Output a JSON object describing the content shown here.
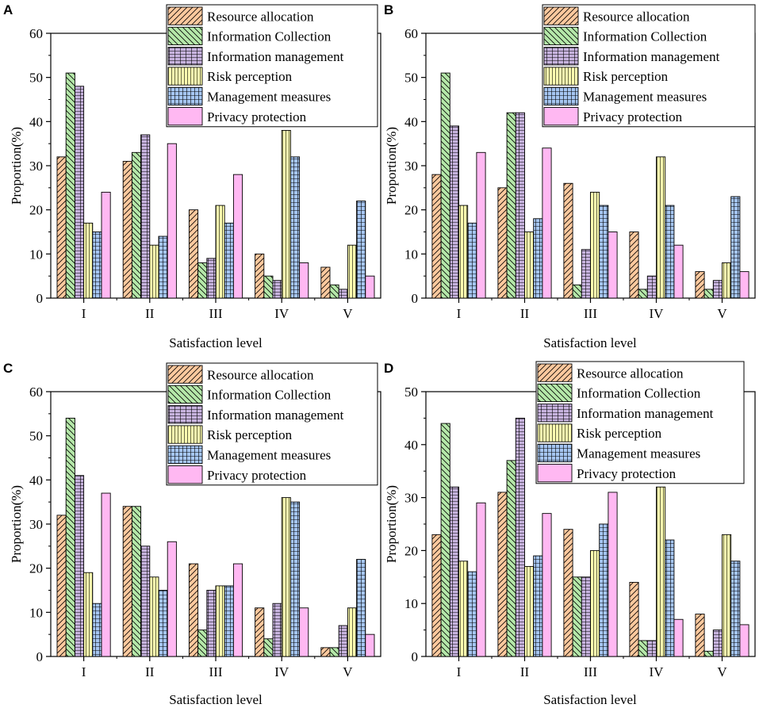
{
  "figure": {
    "series_names": [
      "Resource allocation",
      "Information Collection",
      "Information management",
      "Risk perception",
      "Management measures",
      "Privacy protection"
    ],
    "series_colors": [
      "#FFC99E",
      "#B5E8A9",
      "#C7B3DE",
      "#FFFFB0",
      "#A6C6F2",
      "#FFB8F2"
    ],
    "series_patterns": [
      "diag-right",
      "diag-left",
      "grid-h",
      "vertical",
      "grid",
      "solid"
    ]
  },
  "chart_data": [
    {
      "type": "bar",
      "panel_label": "A",
      "categories": [
        "I",
        "II",
        "III",
        "IV",
        "V"
      ],
      "series": [
        {
          "name": "Resource allocation",
          "values": [
            32,
            31,
            20,
            10,
            7
          ]
        },
        {
          "name": "Information Collection",
          "values": [
            51,
            33,
            8,
            5,
            3
          ]
        },
        {
          "name": "Information management",
          "values": [
            48,
            37,
            9,
            4,
            2
          ]
        },
        {
          "name": "Risk perception",
          "values": [
            17,
            12,
            21,
            38,
            12
          ]
        },
        {
          "name": "Management measures",
          "values": [
            15,
            14,
            17,
            32,
            22
          ]
        },
        {
          "name": "Privacy protection",
          "values": [
            24,
            35,
            28,
            8,
            5
          ]
        }
      ],
      "xlabel": "Satisfaction level",
      "ylabel": "Proportion(%)",
      "ylim": [
        0,
        60
      ],
      "yticks": [
        0,
        10,
        20,
        30,
        40,
        50,
        60
      ],
      "legend": "top-right"
    },
    {
      "type": "bar",
      "panel_label": "B",
      "categories": [
        "I",
        "II",
        "III",
        "IV",
        "V"
      ],
      "series": [
        {
          "name": "Resource allocation",
          "values": [
            28,
            25,
            26,
            15,
            6
          ]
        },
        {
          "name": "Information Collection",
          "values": [
            51,
            42,
            3,
            2,
            2
          ]
        },
        {
          "name": "Information management",
          "values": [
            39,
            42,
            11,
            5,
            4
          ]
        },
        {
          "name": "Risk perception",
          "values": [
            21,
            15,
            24,
            32,
            8
          ]
        },
        {
          "name": "Management measures",
          "values": [
            17,
            18,
            21,
            21,
            23
          ]
        },
        {
          "name": "Privacy protection",
          "values": [
            33,
            34,
            15,
            12,
            6
          ]
        }
      ],
      "xlabel": "Satisfaction level",
      "ylabel": "Proportion(%)",
      "ylim": [
        0,
        60
      ],
      "yticks": [
        0,
        10,
        20,
        30,
        40,
        50,
        60
      ],
      "legend": "top-right"
    },
    {
      "type": "bar",
      "panel_label": "C",
      "categories": [
        "I",
        "II",
        "III",
        "IV",
        "V"
      ],
      "series": [
        {
          "name": "Resource allocation",
          "values": [
            32,
            34,
            21,
            11,
            2
          ]
        },
        {
          "name": "Information Collection",
          "values": [
            54,
            34,
            6,
            4,
            2
          ]
        },
        {
          "name": "Information management",
          "values": [
            41,
            25,
            15,
            12,
            7
          ]
        },
        {
          "name": "Risk perception",
          "values": [
            19,
            18,
            16,
            36,
            11
          ]
        },
        {
          "name": "Management measures",
          "values": [
            12,
            15,
            16,
            35,
            22
          ]
        },
        {
          "name": "Privacy protection",
          "values": [
            37,
            26,
            21,
            11,
            5
          ]
        }
      ],
      "xlabel": "Satisfaction level",
      "ylabel": "Proportion(%)",
      "ylim": [
        0,
        60
      ],
      "yticks": [
        0,
        10,
        20,
        30,
        40,
        50,
        60
      ],
      "legend": "top-right"
    },
    {
      "type": "bar",
      "panel_label": "D",
      "categories": [
        "I",
        "II",
        "III",
        "IV",
        "V"
      ],
      "series": [
        {
          "name": "Resource allocation",
          "values": [
            23,
            31,
            24,
            14,
            8
          ]
        },
        {
          "name": "Information Collection",
          "values": [
            44,
            37,
            15,
            3,
            1
          ]
        },
        {
          "name": "Information management",
          "values": [
            32,
            45,
            15,
            3,
            5
          ]
        },
        {
          "name": "Risk perception",
          "values": [
            18,
            17,
            20,
            32,
            23
          ]
        },
        {
          "name": "Management measures",
          "values": [
            16,
            19,
            25,
            22,
            18
          ]
        },
        {
          "name": "Privacy protection",
          "values": [
            29,
            27,
            31,
            7,
            6
          ]
        }
      ],
      "xlabel": "Satisfaction level",
      "ylabel": "Proportion(%)",
      "ylim": [
        0,
        50
      ],
      "yticks": [
        0,
        10,
        20,
        30,
        40,
        50
      ],
      "legend": "top-right"
    }
  ]
}
